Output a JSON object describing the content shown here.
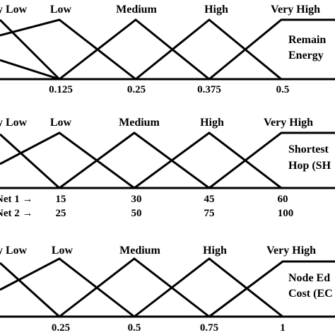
{
  "panels": [
    {
      "name": "remaining-energy",
      "mf_labels": [
        "y Low",
        "Low",
        "Medium",
        "High",
        "Very High"
      ],
      "variable_lines": [
        "Remain",
        "Energy"
      ],
      "ticks": [
        "0.125",
        "0.25",
        "0.375",
        "0.5"
      ],
      "second_row_prefixes": [],
      "second_row_ticks": [],
      "tick_row_prefixes": []
    },
    {
      "name": "shortest-hop",
      "mf_labels": [
        "y Low",
        "Low",
        "Medium",
        "High",
        "Very High"
      ],
      "variable_lines": [
        "Shortest",
        "Hop (SH"
      ],
      "tick_row_prefixes": [
        "Net 1 →"
      ],
      "ticks": [
        "15",
        "30",
        "45",
        "60"
      ],
      "second_row_prefixes": [
        "Net 2 →"
      ],
      "second_row_ticks": [
        "25",
        "50",
        "75",
        "100"
      ]
    },
    {
      "name": "node-edge-cost",
      "mf_labels": [
        "y Low",
        "Low",
        "Medium",
        "High",
        "Very High"
      ],
      "variable_lines": [
        "Node Ed",
        "Cost (EC"
      ],
      "ticks": [
        "0.25",
        "0.5",
        "0.75",
        "1"
      ],
      "second_row_prefixes": [],
      "second_row_ticks": [],
      "tick_row_prefixes": []
    }
  ]
}
